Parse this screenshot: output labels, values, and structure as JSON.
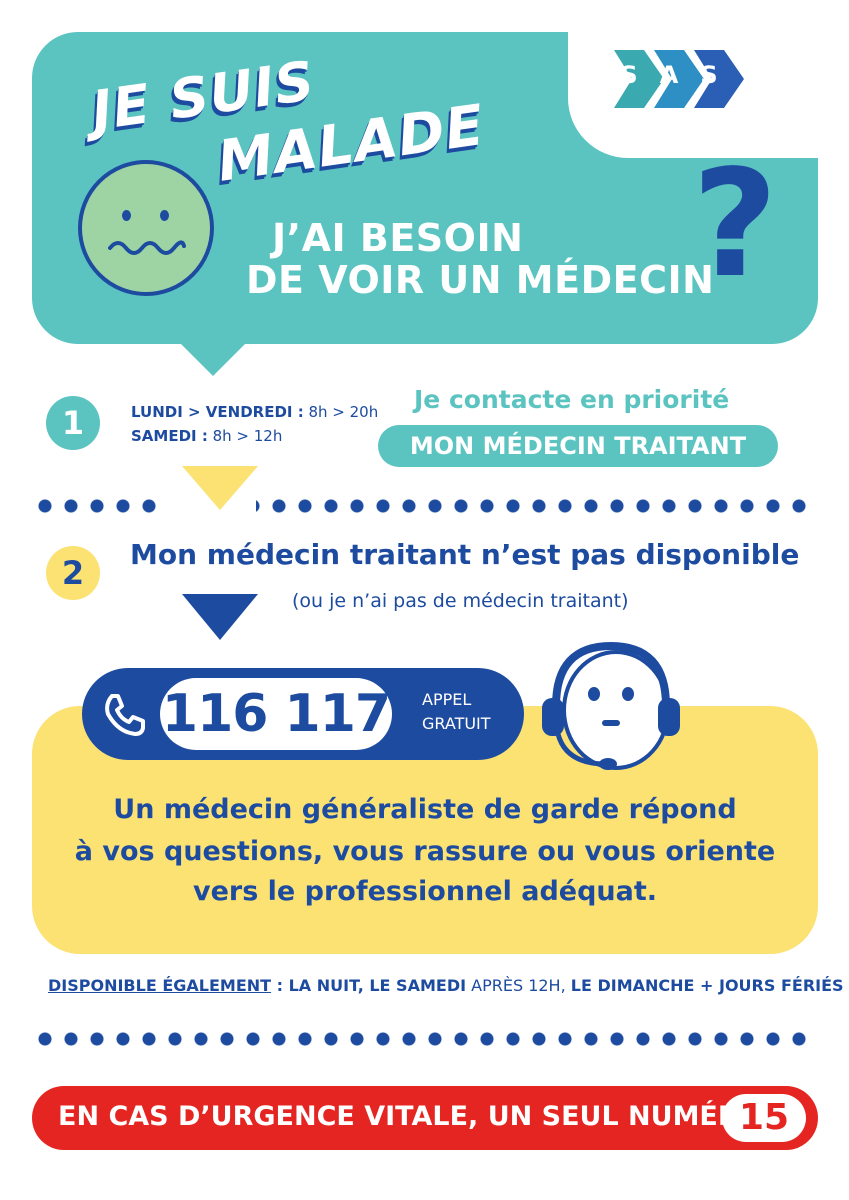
{
  "colors": {
    "teal": "#5bc4c1",
    "navy": "#1d4ba0",
    "yellow": "#fbe273",
    "red": "#e52521",
    "green": "#9ed4a4"
  },
  "logo": {
    "letters": [
      "S",
      "A",
      "S"
    ]
  },
  "header": {
    "title_line1": "JE SUIS",
    "title_line2": "MALADE",
    "subtitle_line1": "J’AI BESOIN",
    "subtitle_line2": "DE VOIR UN MÉDECIN",
    "question_mark": "?"
  },
  "step1": {
    "number": "1",
    "hours_line1_days": "LUNDI > VENDREDI :",
    "hours_line1_time": " 8h > 20h",
    "hours_line2_days": "SAMEDI :",
    "hours_line2_time": " 8h > 12h",
    "contact_label": "Je contacte en priorité",
    "contact_target": "MON MÉDECIN TRAITANT"
  },
  "step2": {
    "number": "2",
    "heading": "Mon médecin traitant n’est pas disponible",
    "subheading": "(ou je n’ai pas de médecin traitant)"
  },
  "hotline": {
    "phone_number": "116 117",
    "free_line1": "APPEL",
    "free_line2": "GRATUIT",
    "info_line1": "Un médecin généraliste de garde répond",
    "info_line2": "à vos questions, vous rassure ou vous oriente",
    "info_line3": "vers le professionnel adéquat."
  },
  "availability": {
    "label": "DISPONIBLE ÉGALEMENT",
    "separator": " :  ",
    "part1": "LA NUIT, LE SAMEDI",
    "part2": " APRÈS 12H, ",
    "part3": "LE DIMANCHE + JOURS FÉRIÉS"
  },
  "emergency": {
    "text": "EN CAS D’URGENCE VITALE, UN SEUL NUMÉRO :",
    "number": "15"
  }
}
